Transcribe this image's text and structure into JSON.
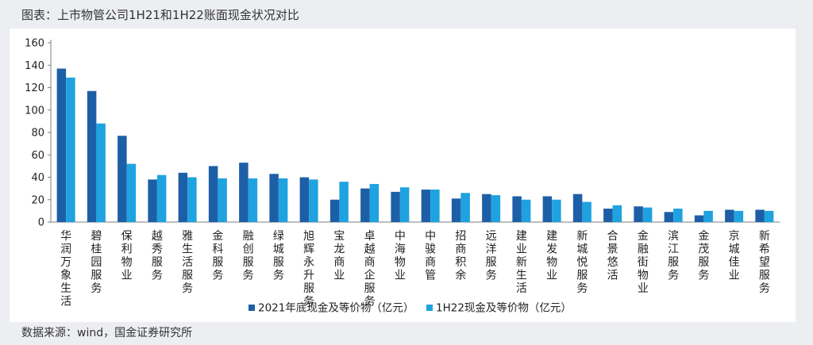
{
  "figure": {
    "title": "图表：上市物管公司1H21和1H22账面现金状况对比",
    "source": "数据来源：wind，国金证券研究所"
  },
  "colors": {
    "series_1": "#1d5fa6",
    "series_2": "#1fa2e0",
    "page_bg": "#eceef1",
    "panel_bg": "#ffffff"
  },
  "chart_data": {
    "type": "bar",
    "title": "",
    "xlabel": "",
    "ylabel": "",
    "ylim": [
      0,
      160
    ],
    "yticks": [
      0,
      20,
      40,
      60,
      80,
      100,
      120,
      140,
      160
    ],
    "grid": false,
    "legend_position": "bottom-center",
    "categories": [
      "华润万象生活",
      "碧桂园服务",
      "保利物业",
      "越秀服务",
      "雅生活服务",
      "金科服务",
      "融创服务",
      "绿城服务",
      "旭辉永升服务",
      "宝龙商业",
      "卓越商企服务",
      "中海物业",
      "中骏商管",
      "招商积余",
      "远洋服务",
      "建业新生活",
      "建发物业",
      "新城悦服务",
      "合景悠活",
      "金融街物业",
      "滨江服务",
      "金茂服务",
      "京城佳业",
      "新希望服务"
    ],
    "series": [
      {
        "name": "2021年底现金及等价物（亿元）",
        "values": [
          137,
          117,
          77,
          38,
          44,
          50,
          53,
          43,
          40,
          20,
          30,
          27,
          29,
          21,
          25,
          23,
          23,
          25,
          12,
          14,
          9,
          6,
          11,
          11
        ]
      },
      {
        "name": "1H22现金及等价物（亿元）",
        "values": [
          129,
          88,
          52,
          42,
          40,
          39,
          39,
          39,
          38,
          36,
          34,
          31,
          29,
          26,
          24,
          20,
          20,
          18,
          15,
          13,
          12,
          10,
          10,
          10
        ]
      }
    ]
  }
}
